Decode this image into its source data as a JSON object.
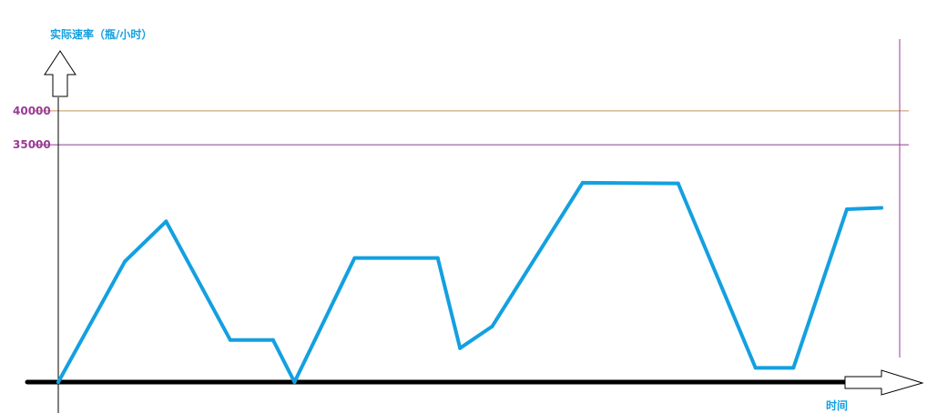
{
  "colors": {
    "series": "#13a0e0",
    "axis": "#000000",
    "tick_text": "#9b3a95",
    "title_text": "#13a0e0",
    "line_40000": "#c4905a",
    "line_35000": "#8e3f8e",
    "right_border": "#9b3a95"
  },
  "chart_data": {
    "type": "line",
    "ylabel": "实际速率（瓶/小时）",
    "xlabel": "时间",
    "ylim": [
      0,
      42000
    ],
    "xlim": [
      0,
      100
    ],
    "yticks": [
      {
        "value": 40000,
        "label": "40000"
      },
      {
        "value": 35000,
        "label": "35000"
      }
    ],
    "reference_lines": [
      40000,
      35000
    ],
    "grid": false,
    "series": [
      {
        "x": [
          0,
          8.1,
          13.1,
          20.9,
          26.1,
          28.7,
          36.0,
          46.1,
          48.8,
          52.7,
          63.7,
          75.3,
          84.7,
          89.3,
          95.8,
          100
        ],
        "y": [
          0,
          17800,
          23700,
          6200,
          6200,
          0,
          18300,
          18300,
          5000,
          8200,
          29400,
          29300,
          2100,
          2100,
          25500,
          25700
        ]
      }
    ]
  }
}
